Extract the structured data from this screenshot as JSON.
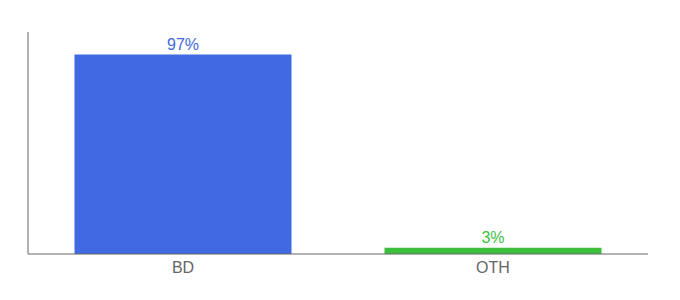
{
  "chart_data": {
    "type": "bar",
    "categories": [
      "BD",
      "OTH"
    ],
    "values": [
      97,
      3
    ],
    "value_labels": [
      "97%",
      "3%"
    ],
    "colors": [
      "#4169e1",
      "#3dbf3d"
    ],
    "ylim": [
      0,
      108
    ],
    "yticks": [],
    "data_labels": true,
    "tick_labels": "x",
    "grid": false
  }
}
